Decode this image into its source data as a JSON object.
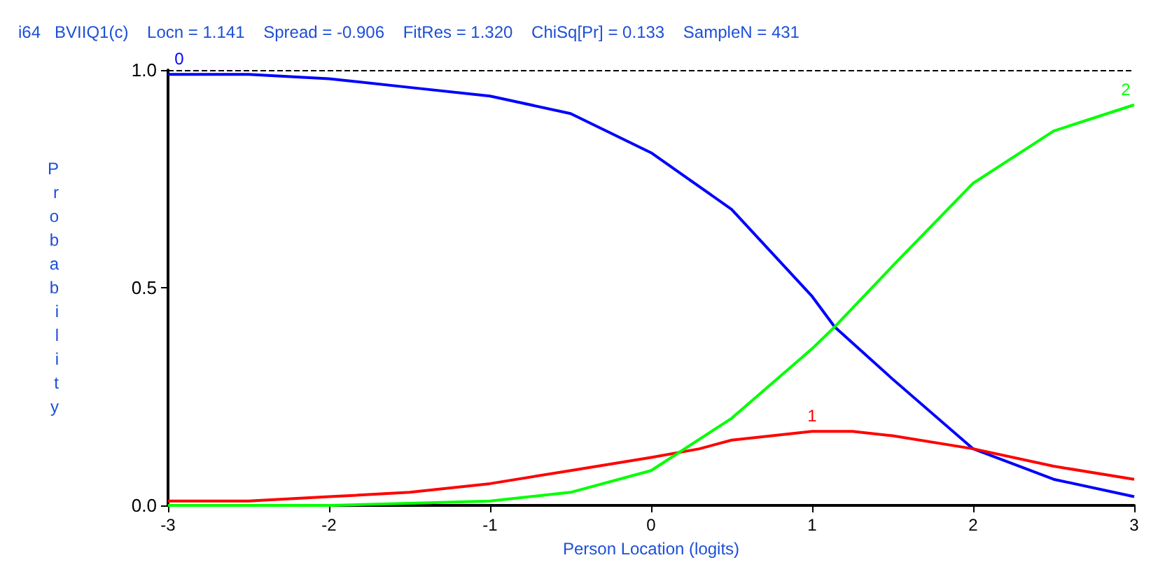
{
  "chart_data": {
    "type": "line",
    "title": "i64   BVIIQ1(c)    Locn = 1.141    Spread = -0.906    FitRes = 1.320    ChiSq[Pr] = 0.133    SampleN = 431",
    "xlabel": "Person Location (logits)",
    "ylabel": "Probability",
    "xlim": [
      -3,
      3
    ],
    "xticks": [
      -3,
      -2,
      -1,
      0,
      1,
      2,
      3
    ],
    "ylim": [
      0,
      1
    ],
    "yticks": [
      {
        "value": 0,
        "label": "0.0"
      },
      {
        "value": 0.5,
        "label": "0.5"
      },
      {
        "value": 1,
        "label": "1.0"
      }
    ],
    "grid": false,
    "legend": false,
    "marker": "none",
    "line_style": "solid",
    "series": [
      {
        "name": "0",
        "color": "#0000ff",
        "x": [
          -3,
          -2.5,
          -2,
          -1.5,
          -1,
          -0.5,
          0,
          0.5,
          1,
          1.14,
          1.5,
          2,
          2.5,
          3
        ],
        "values": [
          0.99,
          0.99,
          0.98,
          0.96,
          0.94,
          0.9,
          0.81,
          0.68,
          0.48,
          0.41,
          0.29,
          0.13,
          0.06,
          0.02
        ]
      },
      {
        "name": "1",
        "color": "#ff0000",
        "x": [
          -3,
          -2.5,
          -2,
          -1.5,
          -1,
          -0.5,
          0,
          0.3,
          0.5,
          1,
          1.25,
          1.5,
          2,
          2.5,
          3
        ],
        "values": [
          0.01,
          0.01,
          0.02,
          0.03,
          0.05,
          0.08,
          0.11,
          0.13,
          0.15,
          0.17,
          0.17,
          0.16,
          0.13,
          0.09,
          0.06
        ]
      },
      {
        "name": "2",
        "color": "#00ff00",
        "x": [
          -3,
          -2.5,
          -2,
          -1.5,
          -1,
          -0.5,
          0,
          0.5,
          1,
          1.14,
          1.5,
          2,
          2.5,
          3
        ],
        "values": [
          0,
          0,
          0,
          0.005,
          0.01,
          0.03,
          0.08,
          0.2,
          0.36,
          0.41,
          0.55,
          0.74,
          0.86,
          0.92
        ]
      }
    ],
    "ref_lines": [
      {
        "axis": "y",
        "value": 1,
        "color": "#000000",
        "line_style": "dashed"
      }
    ]
  }
}
